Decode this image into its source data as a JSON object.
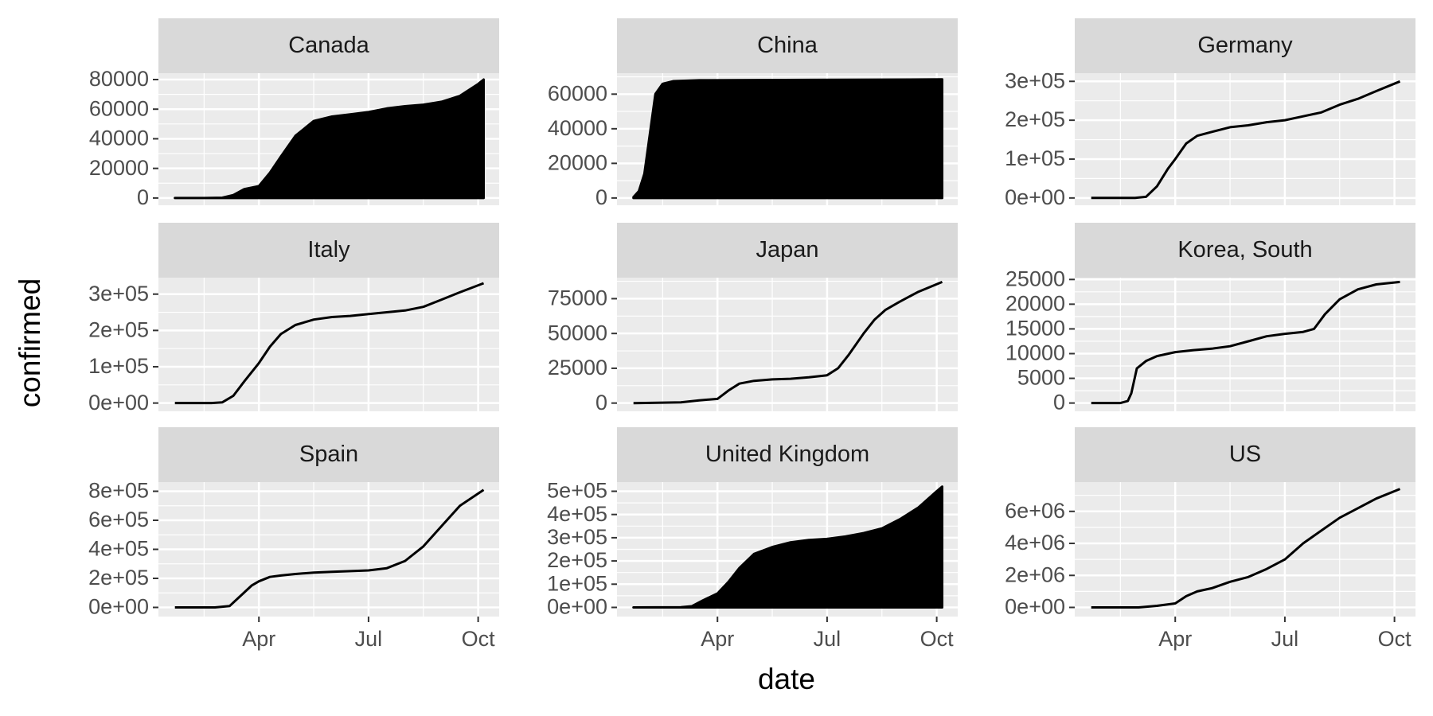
{
  "axis_labels": {
    "x": "date",
    "y": "confirmed"
  },
  "chart_data": [
    {
      "type": "area",
      "title": "Canada",
      "color": "#000000",
      "grid": true,
      "x": [
        1.7,
        2.5,
        3.0,
        3.3,
        3.6,
        4.0,
        4.3,
        4.6,
        5.0,
        5.5,
        6.0,
        6.5,
        7.0,
        7.5,
        8.0,
        8.5,
        9.0,
        9.5,
        10.0,
        10.15
      ],
      "values": [
        0,
        0,
        200,
        2000,
        6000,
        8000,
        17000,
        28000,
        42000,
        52000,
        55000,
        56500,
        58000,
        60500,
        62000,
        63000,
        65000,
        69000,
        77000,
        80000
      ],
      "xlim": [
        1.25,
        10.575
      ],
      "ylim": [
        -4900,
        84300
      ],
      "xticks": [
        {
          "value": 4,
          "label": "Apr"
        },
        {
          "value": 7,
          "label": "Jul"
        },
        {
          "value": 10,
          "label": "Oct"
        }
      ],
      "yticks": [
        0,
        20000,
        40000,
        60000,
        80000
      ]
    },
    {
      "type": "area",
      "title": "China",
      "color": "#000000",
      "grid": true,
      "x": [
        1.7,
        1.85,
        2.0,
        2.15,
        2.3,
        2.5,
        2.8,
        3.5,
        10.15
      ],
      "values": [
        550,
        4000,
        14000,
        37000,
        60000,
        66000,
        67500,
        68000,
        68500
      ],
      "xlim": [
        1.25,
        10.575
      ],
      "ylim": [
        -4200,
        72100
      ],
      "xticks": [
        {
          "value": 4,
          "label": "Apr"
        },
        {
          "value": 7,
          "label": "Jul"
        },
        {
          "value": 10,
          "label": "Oct"
        }
      ],
      "yticks": [
        0,
        20000,
        40000,
        60000
      ]
    },
    {
      "type": "line",
      "title": "Germany",
      "color": "#000000",
      "grid": true,
      "x": [
        1.7,
        2.9,
        3.2,
        3.5,
        3.8,
        4.0,
        4.3,
        4.6,
        5.0,
        5.5,
        6.0,
        6.5,
        7.0,
        7.5,
        8.0,
        8.5,
        9.0,
        9.5,
        10.15
      ],
      "values": [
        0,
        0,
        3000,
        30000,
        75000,
        100000,
        140000,
        160000,
        170000,
        182000,
        187000,
        195000,
        200000,
        210000,
        220000,
        240000,
        255000,
        275000,
        300000
      ],
      "xlim": [
        1.25,
        10.575
      ],
      "ylim": [
        -18750,
        321000
      ],
      "xticks": [
        {
          "value": 4,
          "label": "Apr"
        },
        {
          "value": 7,
          "label": "Jul"
        },
        {
          "value": 10,
          "label": "Oct"
        }
      ],
      "yticks": [
        {
          "value": 0,
          "label": "0e+00"
        },
        {
          "value": 100000,
          "label": "1e+05"
        },
        {
          "value": 200000,
          "label": "2e+05"
        },
        {
          "value": 300000,
          "label": "3e+05"
        }
      ]
    },
    {
      "type": "line",
      "title": "Italy",
      "color": "#000000",
      "grid": true,
      "x": [
        1.7,
        2.7,
        3.0,
        3.3,
        3.6,
        4.0,
        4.3,
        4.6,
        5.0,
        5.5,
        6.0,
        6.5,
        7.0,
        7.5,
        8.0,
        8.5,
        9.0,
        9.5,
        10.15
      ],
      "values": [
        0,
        0,
        2000,
        20000,
        60000,
        110000,
        155000,
        190000,
        215000,
        230000,
        237000,
        240000,
        245000,
        250000,
        255000,
        265000,
        285000,
        305000,
        330000
      ],
      "xlim": [
        1.25,
        10.575
      ],
      "ylim": [
        -22700,
        345400
      ],
      "xticks": [
        {
          "value": 4,
          "label": "Apr"
        },
        {
          "value": 7,
          "label": "Jul"
        },
        {
          "value": 10,
          "label": "Oct"
        }
      ],
      "yticks": [
        {
          "value": 0,
          "label": "0e+00"
        },
        {
          "value": 100000,
          "label": "1e+05"
        },
        {
          "value": 200000,
          "label": "2e+05"
        },
        {
          "value": 300000,
          "label": "3e+05"
        }
      ]
    },
    {
      "type": "line",
      "title": "Japan",
      "color": "#000000",
      "grid": true,
      "x": [
        1.7,
        3.0,
        3.5,
        4.0,
        4.3,
        4.6,
        5.0,
        5.5,
        6.0,
        6.5,
        7.0,
        7.3,
        7.6,
        8.0,
        8.3,
        8.6,
        9.0,
        9.5,
        10.15
      ],
      "values": [
        0,
        500,
        2000,
        3000,
        9000,
        14000,
        16000,
        17000,
        17500,
        18500,
        20000,
        25000,
        35000,
        50000,
        60000,
        67000,
        73000,
        80000,
        87000
      ],
      "xlim": [
        1.25,
        10.575
      ],
      "ylim": [
        -5900,
        90100
      ],
      "xticks": [
        {
          "value": 4,
          "label": "Apr"
        },
        {
          "value": 7,
          "label": "Jul"
        },
        {
          "value": 10,
          "label": "Oct"
        }
      ],
      "yticks": [
        0,
        25000,
        50000,
        75000
      ]
    },
    {
      "type": "line",
      "title": "Korea, South",
      "color": "#000000",
      "grid": true,
      "x": [
        1.7,
        2.5,
        2.7,
        2.8,
        2.95,
        3.2,
        3.5,
        4.0,
        4.5,
        5.0,
        5.5,
        6.0,
        6.5,
        7.0,
        7.5,
        7.8,
        8.1,
        8.5,
        9.0,
        9.5,
        10.15
      ],
      "values": [
        0,
        0,
        400,
        2000,
        7000,
        8500,
        9500,
        10300,
        10700,
        11000,
        11500,
        12500,
        13500,
        14000,
        14400,
        15000,
        18000,
        21000,
        23000,
        24000,
        24500
      ],
      "xlim": [
        1.25,
        10.575
      ],
      "ylim": [
        -1670,
        25370
      ],
      "xticks": [
        {
          "value": 4,
          "label": "Apr"
        },
        {
          "value": 7,
          "label": "Jul"
        },
        {
          "value": 10,
          "label": "Oct"
        }
      ],
      "yticks": [
        0,
        5000,
        10000,
        15000,
        20000,
        25000
      ]
    },
    {
      "type": "line",
      "title": "Spain",
      "color": "#000000",
      "grid": true,
      "x": [
        1.7,
        2.8,
        3.2,
        3.5,
        3.8,
        4.0,
        4.3,
        4.6,
        5.0,
        5.5,
        6.0,
        6.5,
        7.0,
        7.5,
        8.0,
        8.5,
        9.0,
        9.5,
        10.15
      ],
      "values": [
        0,
        0,
        10000,
        80000,
        150000,
        180000,
        210000,
        220000,
        230000,
        240000,
        245000,
        250000,
        255000,
        270000,
        320000,
        420000,
        560000,
        700000,
        810000
      ],
      "xlim": [
        1.25,
        10.575
      ],
      "ylim": [
        -63000,
        863000
      ],
      "xticks": [
        {
          "value": 4,
          "label": "Apr"
        },
        {
          "value": 7,
          "label": "Jul"
        },
        {
          "value": 10,
          "label": "Oct"
        }
      ],
      "yticks": [
        {
          "value": 0,
          "label": "0e+00"
        },
        {
          "value": 200000,
          "label": "2e+05"
        },
        {
          "value": 400000,
          "label": "4e+05"
        },
        {
          "value": 600000,
          "label": "6e+05"
        },
        {
          "value": 800000,
          "label": "8e+05"
        }
      ]
    },
    {
      "type": "area",
      "title": "United Kingdom",
      "color": "#000000",
      "grid": true,
      "x": [
        1.7,
        3.0,
        3.3,
        3.6,
        4.0,
        4.3,
        4.6,
        5.0,
        5.5,
        6.0,
        6.5,
        7.0,
        7.5,
        8.0,
        8.5,
        9.0,
        9.5,
        10.0,
        10.15
      ],
      "values": [
        0,
        500,
        5000,
        30000,
        60000,
        110000,
        170000,
        230000,
        260000,
        280000,
        290000,
        295000,
        305000,
        320000,
        340000,
        380000,
        430000,
        500000,
        520000
      ],
      "xlim": [
        1.25,
        10.575
      ],
      "ylim": [
        -39400,
        539400
      ],
      "xticks": [
        {
          "value": 4,
          "label": "Apr"
        },
        {
          "value": 7,
          "label": "Jul"
        },
        {
          "value": 10,
          "label": "Oct"
        }
      ],
      "yticks": [
        {
          "value": 0,
          "label": "0e+00"
        },
        {
          "value": 100000,
          "label": "1e+05"
        },
        {
          "value": 200000,
          "label": "2e+05"
        },
        {
          "value": 300000,
          "label": "3e+05"
        },
        {
          "value": 400000,
          "label": "4e+05"
        },
        {
          "value": 500000,
          "label": "5e+05"
        }
      ]
    },
    {
      "type": "line",
      "title": "US",
      "color": "#000000",
      "grid": true,
      "x": [
        1.7,
        3.0,
        3.5,
        4.0,
        4.3,
        4.6,
        5.0,
        5.5,
        6.0,
        6.5,
        7.0,
        7.5,
        8.0,
        8.5,
        9.0,
        9.5,
        10.15
      ],
      "values": [
        0,
        50,
        100000,
        250000,
        700000,
        1000000,
        1200000,
        1600000,
        1900000,
        2400000,
        3000000,
        4000000,
        4800000,
        5600000,
        6200000,
        6800000,
        7400000
      ],
      "xlim": [
        1.25,
        10.575
      ],
      "ylim": [
        -571000,
        7828600
      ],
      "xticks": [
        {
          "value": 4,
          "label": "Apr"
        },
        {
          "value": 7,
          "label": "Jul"
        },
        {
          "value": 10,
          "label": "Oct"
        }
      ],
      "yticks": [
        {
          "value": 0,
          "label": "0e+00"
        },
        {
          "value": 2000000,
          "label": "2e+06"
        },
        {
          "value": 4000000,
          "label": "4e+06"
        },
        {
          "value": 6000000,
          "label": "6e+06"
        }
      ]
    }
  ]
}
